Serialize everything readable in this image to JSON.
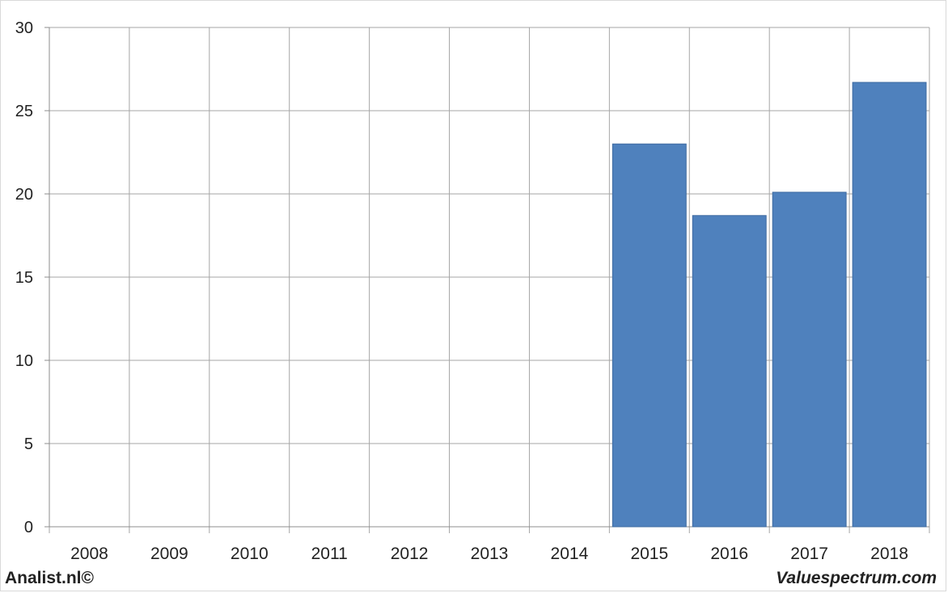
{
  "chart_data": {
    "type": "bar",
    "categories": [
      "2008",
      "2009",
      "2010",
      "2011",
      "2012",
      "2013",
      "2014",
      "2015",
      "2016",
      "2017",
      "2018"
    ],
    "values": [
      null,
      null,
      null,
      null,
      null,
      null,
      null,
      23.0,
      18.7,
      20.1,
      26.7
    ],
    "title": "",
    "xlabel": "",
    "ylabel": "",
    "ylim": [
      0,
      30
    ],
    "yticks": [
      0,
      5,
      10,
      15,
      20,
      25,
      30
    ],
    "grid": true,
    "bar_color": "#4f81bd"
  },
  "footer": {
    "left": "Analist.nl©",
    "right": "Valuespectrum.com"
  }
}
